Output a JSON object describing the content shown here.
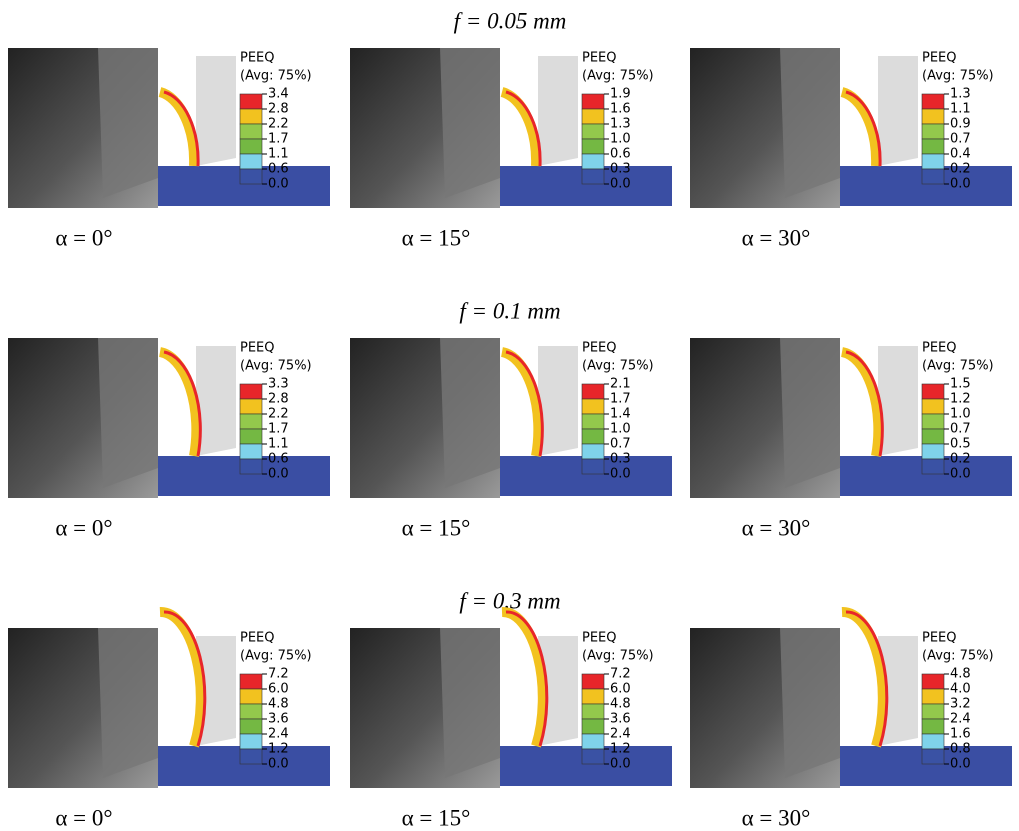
{
  "rows": [
    {
      "title": "f = 0.05 mm",
      "panels": [
        {
          "caption": "α = 0°",
          "legend": {
            "title": "PEEQ",
            "subtitle": "(Avg: 75%)",
            "values": [
              "3.4",
              "2.8",
              "2.2",
              "1.7",
              "1.1",
              "0.6",
              "0.0"
            ]
          }
        },
        {
          "caption": "α = 15°",
          "legend": {
            "title": "PEEQ",
            "subtitle": "(Avg: 75%)",
            "values": [
              "1.9",
              "1.6",
              "1.3",
              "1.0",
              "0.6",
              "0.3",
              "0.0"
            ]
          }
        },
        {
          "caption": "α = 30°",
          "legend": {
            "title": "PEEQ",
            "subtitle": "(Avg: 75%)",
            "values": [
              "1.3",
              "1.1",
              "0.9",
              "0.7",
              "0.4",
              "0.2",
              "0.0"
            ]
          }
        }
      ]
    },
    {
      "title": "f = 0.1 mm",
      "panels": [
        {
          "caption": "α = 0°",
          "legend": {
            "title": "PEEQ",
            "subtitle": "(Avg: 75%)",
            "values": [
              "3.3",
              "2.8",
              "2.2",
              "1.7",
              "1.1",
              "0.6",
              "0.0"
            ]
          }
        },
        {
          "caption": "α = 15°",
          "legend": {
            "title": "PEEQ",
            "subtitle": "(Avg: 75%)",
            "values": [
              "2.1",
              "1.7",
              "1.4",
              "1.0",
              "0.7",
              "0.3",
              "0.0"
            ]
          }
        },
        {
          "caption": "α = 30°",
          "legend": {
            "title": "PEEQ",
            "subtitle": "(Avg: 75%)",
            "values": [
              "1.5",
              "1.2",
              "1.0",
              "0.7",
              "0.5",
              "0.2",
              "0.0"
            ]
          }
        }
      ]
    },
    {
      "title": "f = 0.3 mm",
      "panels": [
        {
          "caption": "α = 0°",
          "legend": {
            "title": "PEEQ",
            "subtitle": "(Avg: 75%)",
            "values": [
              "7.2",
              "6.0",
              "4.8",
              "3.6",
              "2.4",
              "1.2",
              "0.0"
            ]
          }
        },
        {
          "caption": "α = 15°",
          "legend": {
            "title": "PEEQ",
            "subtitle": "(Avg: 75%)",
            "values": [
              "7.2",
              "6.0",
              "4.8",
              "3.6",
              "2.4",
              "1.2",
              "0.0"
            ]
          }
        },
        {
          "caption": "α = 30°",
          "legend": {
            "title": "PEEQ",
            "subtitle": "(Avg: 75%)",
            "values": [
              "4.8",
              "4.0",
              "3.2",
              "2.4",
              "1.6",
              "0.8",
              "0.0"
            ]
          }
        }
      ]
    }
  ]
}
